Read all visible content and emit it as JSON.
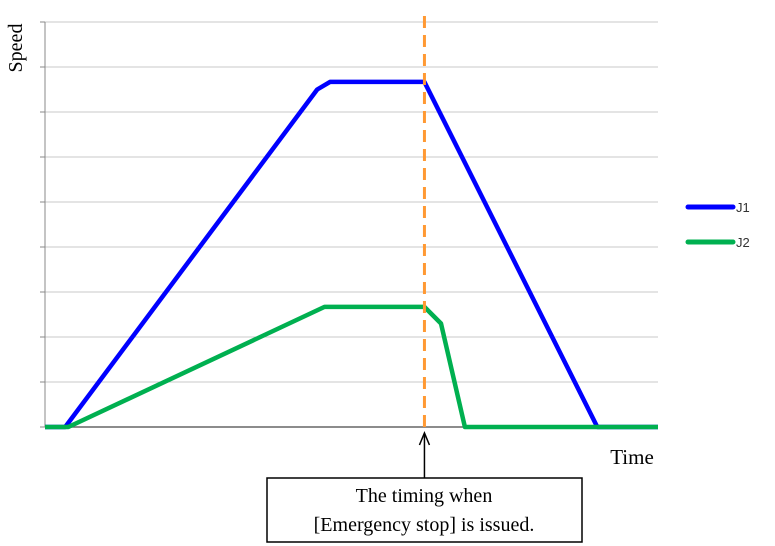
{
  "chart_data": {
    "type": "line",
    "title": "",
    "xlabel": "Time",
    "ylabel": "Speed",
    "x_range": [
      0,
      100
    ],
    "ylim": [
      0,
      9
    ],
    "grid": true,
    "legend_position": "right",
    "series": [
      {
        "name": "J1",
        "color": "#0000ff",
        "x": [
          0,
          3.3,
          44.4,
          46.5,
          61.9,
          90.1,
          100
        ],
        "y": [
          0,
          0,
          7.5,
          7.67,
          7.67,
          0,
          0
        ]
      },
      {
        "name": "J2",
        "color": "#00b050",
        "x": [
          0,
          3.8,
          45.6,
          61.9,
          64.6,
          68.5,
          100
        ],
        "y": [
          0,
          0,
          2.67,
          2.67,
          2.3,
          0,
          0
        ]
      }
    ],
    "annotation": {
      "line_color": "#ff9933",
      "x": 61.9,
      "lines": [
        "The timing when",
        "[Emergency stop] is issued."
      ]
    }
  }
}
